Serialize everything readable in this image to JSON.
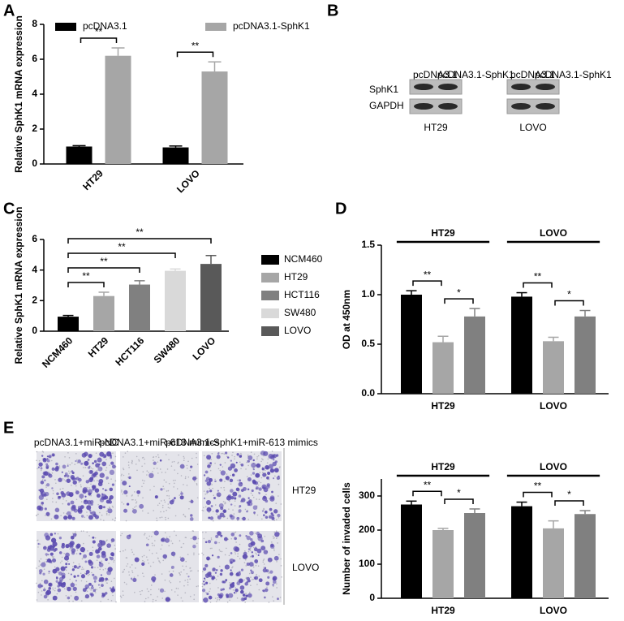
{
  "panel_labels": [
    "A",
    "B",
    "C",
    "D",
    "E"
  ],
  "chart_data": [
    {
      "type": "grouped_bar",
      "ylabel": "Relative SphK1 mRNA expression",
      "categories": [
        "HT29",
        "LOVO"
      ],
      "series": [
        {
          "name": "pcDNA3.1",
          "color": "#000000",
          "values": [
            1.0,
            0.95
          ],
          "errors": [
            0.05,
            0.08
          ]
        },
        {
          "name": "pcDNA3.1-SphK1",
          "color": "#a6a6a6",
          "values": [
            6.2,
            5.3
          ],
          "errors": [
            0.45,
            0.55
          ]
        }
      ],
      "ylim": [
        0,
        8
      ],
      "yticks": [
        0,
        2,
        4,
        6,
        8
      ],
      "annotations": [
        [
          "**"
        ],
        [
          "**"
        ]
      ]
    },
    {
      "type": "bar",
      "ylabel": "Relative SphK1 mRNA expression",
      "categories": [
        "NCM460",
        "HT29",
        "HCT116",
        "SW480",
        "LOVO"
      ],
      "values": [
        0.95,
        2.3,
        3.05,
        3.95,
        4.4
      ],
      "errors": [
        0.08,
        0.25,
        0.25,
        0.12,
        0.55
      ],
      "colors": [
        "#000000",
        "#a6a6a6",
        "#808080",
        "#d9d9d9",
        "#595959"
      ],
      "ylim": [
        0,
        6
      ],
      "yticks": [
        0,
        2,
        4,
        6
      ],
      "annotations": [
        "**",
        "**",
        "**",
        "**"
      ]
    },
    {
      "type": "grouped_bar",
      "ylabel": "OD at 450nm",
      "categories": [
        "HT29",
        "LOVO"
      ],
      "series": [
        {
          "color": "#000000",
          "values": [
            1.0,
            0.98
          ],
          "errors": [
            0.04,
            0.04
          ]
        },
        {
          "color": "#a6a6a6",
          "values": [
            0.52,
            0.53
          ],
          "errors": [
            0.06,
            0.04
          ]
        },
        {
          "color": "#808080",
          "values": [
            0.78,
            0.78
          ],
          "errors": [
            0.08,
            0.06
          ]
        }
      ],
      "ylim": [
        0,
        1.5
      ],
      "yticks": [
        {
          "value": 0,
          "label": "0.0"
        },
        {
          "value": 0.5,
          "label": "0.5"
        },
        {
          "value": 1,
          "label": "1.0"
        },
        {
          "value": 1.5,
          "label": "1.5"
        }
      ],
      "annotations": [
        [
          "**",
          "*"
        ],
        [
          "**",
          "*"
        ]
      ]
    },
    {
      "type": "grouped_bar",
      "ylabel": "Number of invaded cells",
      "categories": [
        "HT29",
        "LOVO"
      ],
      "series": [
        {
          "color": "#000000",
          "values": [
            275,
            270
          ],
          "errors": [
            10,
            12
          ]
        },
        {
          "color": "#a6a6a6",
          "values": [
            200,
            205
          ],
          "errors": [
            5,
            22
          ]
        },
        {
          "color": "#808080",
          "values": [
            250,
            247
          ],
          "errors": [
            12,
            10
          ]
        }
      ],
      "ylim": [
        0,
        350
      ],
      "yticks": [
        0,
        100,
        200,
        300
      ],
      "annotations": [
        [
          "**",
          "*"
        ],
        [
          "**",
          "*"
        ]
      ]
    }
  ],
  "western_blot": {
    "lanes": [
      "pcDNA3.1",
      "pcDNA3.1-SphK1",
      "pcDNA3.1",
      "pcDNA3.1-SphK1"
    ],
    "proteins": [
      "SphK1",
      "GAPDH"
    ],
    "cell_lines": [
      "HT29",
      "LOVO"
    ]
  },
  "transwell": {
    "columns": [
      "pcDNA3.1+miR-NC",
      "pcDNA3.1+miR-613 mimics",
      "pcDNA3.1-SphK1+miR-613 mimics"
    ],
    "rows": [
      "HT29",
      "LOVO"
    ]
  }
}
